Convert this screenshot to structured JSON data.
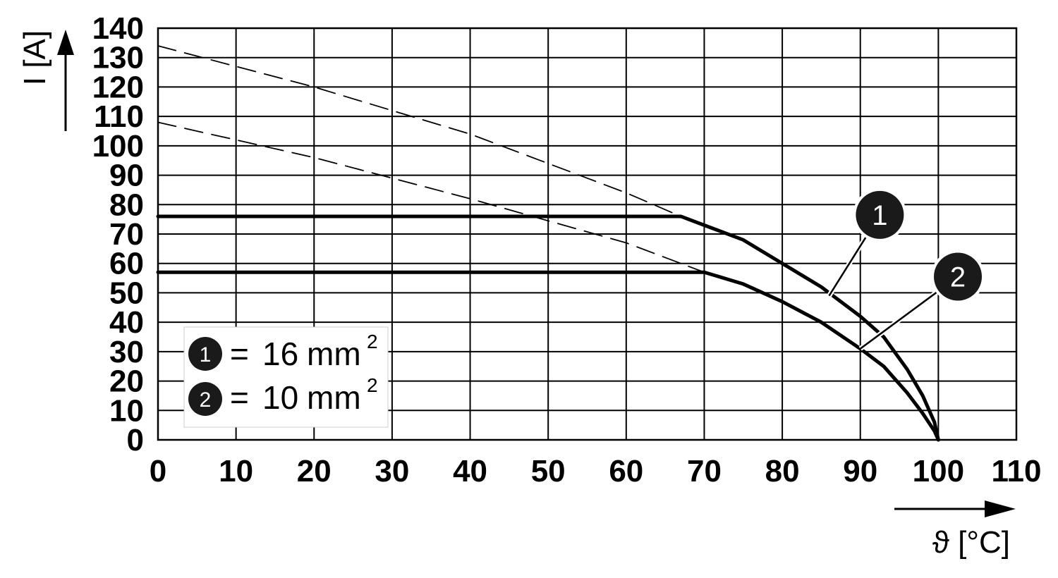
{
  "chart_data": {
    "type": "line",
    "title": "",
    "xlabel": "ϑ [°C]",
    "ylabel": "I [A]",
    "xlim": [
      0,
      110
    ],
    "ylim": [
      0,
      140
    ],
    "x_ticks": [
      "0",
      "10",
      "20",
      "30",
      "40",
      "50",
      "60",
      "70",
      "80",
      "90",
      "100",
      "110"
    ],
    "y_ticks": [
      "0",
      "10",
      "20",
      "30",
      "40",
      "50",
      "60",
      "70",
      "80",
      "90",
      "100",
      "110",
      "120",
      "130",
      "140"
    ],
    "grid": true,
    "series": [
      {
        "name": "1",
        "style": "solid",
        "points": [
          [
            0,
            76
          ],
          [
            67,
            76
          ],
          [
            70,
            73
          ],
          [
            75,
            68
          ],
          [
            80,
            60
          ],
          [
            85,
            52
          ],
          [
            90,
            42
          ],
          [
            93,
            35
          ],
          [
            96,
            24
          ],
          [
            98,
            15
          ],
          [
            99.5,
            6
          ],
          [
            100,
            0
          ]
        ]
      },
      {
        "name": "2",
        "style": "solid",
        "points": [
          [
            0,
            57
          ],
          [
            70,
            57
          ],
          [
            75,
            53
          ],
          [
            80,
            47
          ],
          [
            85,
            40
          ],
          [
            90,
            31
          ],
          [
            93,
            25
          ],
          [
            96,
            16
          ],
          [
            98,
            9
          ],
          [
            99.5,
            3
          ],
          [
            100,
            0
          ]
        ]
      },
      {
        "name": "",
        "style": "dashed",
        "points": [
          [
            0,
            134
          ],
          [
            20,
            120
          ],
          [
            40,
            104
          ],
          [
            60,
            84
          ],
          [
            67,
            76
          ]
        ]
      },
      {
        "name": "",
        "style": "dashed",
        "points": [
          [
            0,
            108
          ],
          [
            20,
            96
          ],
          [
            40,
            82
          ],
          [
            60,
            67
          ],
          [
            70,
            57
          ]
        ]
      }
    ],
    "callouts": [
      {
        "label": "1",
        "circle": [
          92.5,
          76.5
        ],
        "anchor": [
          86,
          49
        ]
      },
      {
        "label": "2",
        "circle": [
          102.5,
          55.5
        ],
        "anchor": [
          90,
          31
        ]
      }
    ],
    "legend": {
      "position": "bottom-left",
      "entries": [
        {
          "marker": "1",
          "eq": "=",
          "value": "16",
          "unit": "mm",
          "exp": "2"
        },
        {
          "marker": "2",
          "eq": "=",
          "value": "10",
          "unit": "mm",
          "exp": "2"
        }
      ]
    }
  }
}
